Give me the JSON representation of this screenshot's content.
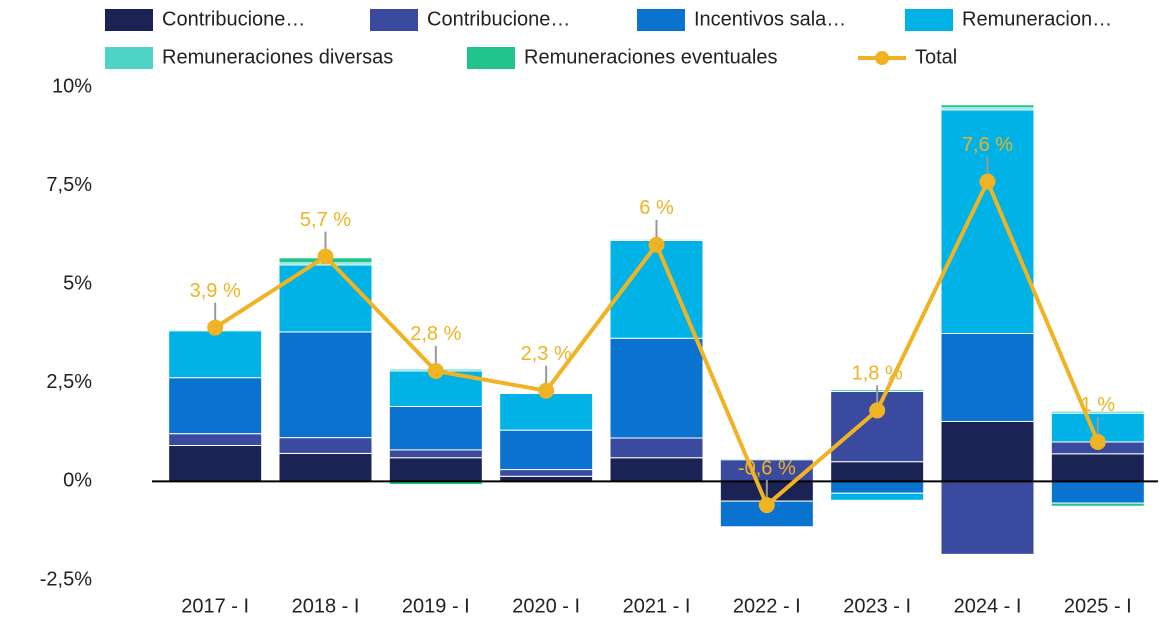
{
  "chart_data": {
    "type": "bar",
    "categories": [
      "2017 - I",
      "2018 - I",
      "2019 - I",
      "2020 - I",
      "2021 - I",
      "2022 - I",
      "2023 - I",
      "2024 - I",
      "2025 - I"
    ],
    "series": [
      {
        "name": "Contribucione…",
        "color": "#1b2354",
        "values": [
          0.91,
          0.71,
          0.6,
          0.13,
          0.6,
          -0.5,
          0.5,
          1.52,
          0.7
        ]
      },
      {
        "name": "Contribucione…",
        "color": "#3a4a9f",
        "values": [
          0.3,
          0.4,
          0.2,
          0.17,
          0.5,
          0.55,
          1.78,
          -1.85,
          0.3
        ]
      },
      {
        "name": "Incentivos sala…",
        "color": "#0a73d0",
        "values": [
          1.42,
          2.68,
          1.1,
          1.0,
          2.53,
          -0.65,
          -0.3,
          2.23,
          -0.55
        ]
      },
      {
        "name": "Remuneracion…",
        "color": "#00b2e6",
        "values": [
          1.19,
          1.7,
          0.9,
          0.93,
          2.48,
          0.03,
          -0.18,
          5.67,
          0.73
        ]
      },
      {
        "name": "Remuneraciones diversas",
        "color": "#4dd4c6",
        "values": [
          0.03,
          0.05,
          0.05,
          0.02,
          0.03,
          0.02,
          0.05,
          0.05,
          0.05
        ]
      },
      {
        "name": "Remuneraciones eventuales",
        "color": "#20c48c",
        "values": [
          0,
          0.13,
          -0.08,
          0,
          0,
          0,
          0,
          0.08,
          -0.08
        ]
      },
      {
        "name": "Total",
        "type": "line",
        "color": "#f0b323",
        "values": [
          3.9,
          5.7,
          2.8,
          2.3,
          6,
          -0.6,
          1.8,
          7.6,
          1
        ],
        "value_labels": [
          "3,9 %",
          "5,7 %",
          "2,8 %",
          "2,3 %",
          "6 %",
          "-0,6 %",
          "1,8 %",
          "7,6 %",
          "1 %"
        ]
      }
    ],
    "ylim": [
      -2.5,
      10
    ],
    "yticks": [
      {
        "value": -2.5,
        "label": "-2,5%"
      },
      {
        "value": 0,
        "label": "0%"
      },
      {
        "value": 2.5,
        "label": "2,5%"
      },
      {
        "value": 5,
        "label": "5%"
      },
      {
        "value": 7.5,
        "label": "7,5%"
      },
      {
        "value": 10,
        "label": "10%"
      }
    ],
    "grid": false
  }
}
